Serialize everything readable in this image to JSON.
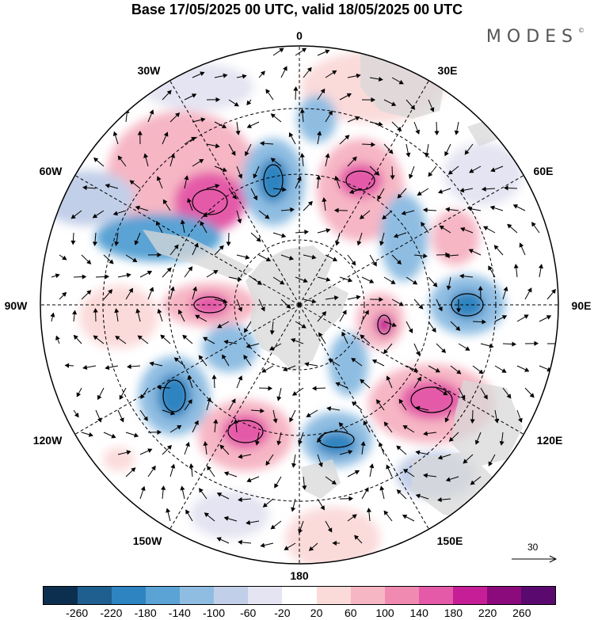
{
  "title": "Base 17/05/2025 00 UTC, valid 18/05/2025 00 UTC",
  "brand": "MODES",
  "brand_mark": "©",
  "longitude_labels": {
    "n0": "0",
    "e30": "30E",
    "e60": "60E",
    "e90": "90E",
    "e120": "120E",
    "e150": "150E",
    "s180": "180",
    "w150": "150W",
    "w120": "120W",
    "w90": "90W",
    "w60": "60W",
    "w30": "30W"
  },
  "reference_vector_label": "30",
  "colorbar": {
    "colors": [
      "#0d2f4f",
      "#1e5f8f",
      "#2e84c0",
      "#5aa3d4",
      "#8fbde2",
      "#c2cfe8",
      "#e4e4f2",
      "#ffffff",
      "#fbdada",
      "#f6b6c4",
      "#f08ab0",
      "#e45aa8",
      "#c61e96",
      "#8b0a7c",
      "#5a0a6e"
    ],
    "labels": [
      "-260",
      "-220",
      "-180",
      "-140",
      "-100",
      "-60",
      "-20",
      "20",
      "60",
      "100",
      "140",
      "180",
      "220",
      "260"
    ]
  }
}
